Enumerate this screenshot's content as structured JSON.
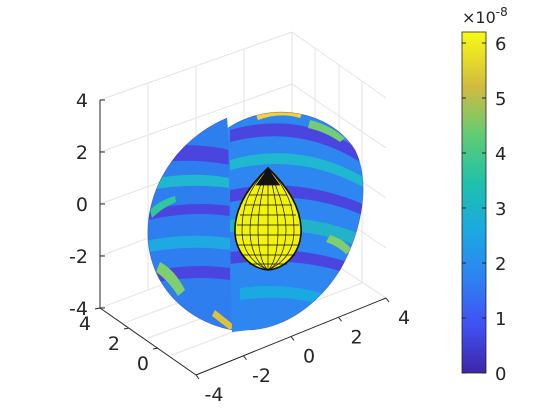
{
  "chart_data": {
    "type": "3d-volume-slice",
    "title": "",
    "x_axis": {
      "ticks": [
        "-4",
        "-2",
        "0",
        "2",
        "4"
      ],
      "range": [
        -4,
        4
      ]
    },
    "y_axis": {
      "ticks": [
        "0",
        "2",
        "4"
      ],
      "range": [
        0,
        4
      ]
    },
    "z_axis": {
      "ticks": [
        "-4",
        "-2",
        "0",
        "2",
        "4"
      ],
      "range": [
        -4,
        4
      ]
    },
    "grid": true,
    "colormap": "parula",
    "colorbar": {
      "ticks": [
        "0",
        "1",
        "2",
        "3",
        "4",
        "5",
        "6"
      ],
      "range": [
        0,
        6.2
      ],
      "multiplier_base": "×10",
      "multiplier_exponent": "-8"
    },
    "surfaces": [
      {
        "kind": "spherical-slices",
        "radius": 4,
        "cutaway": "one quadrant removed"
      },
      {
        "kind": "wireframe-droplet",
        "color": "#1a1a1a",
        "fill": "#f2f20a"
      }
    ]
  }
}
